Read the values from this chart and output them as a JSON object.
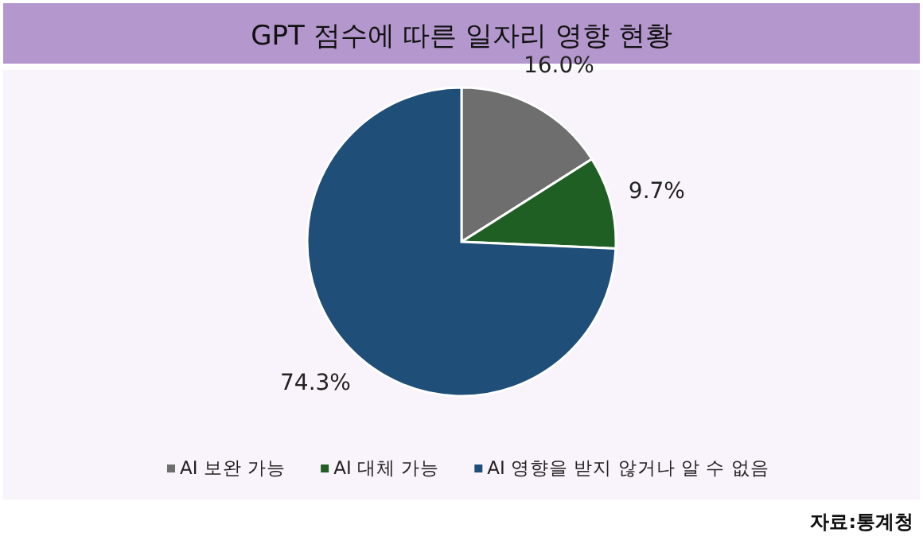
{
  "chart_data": {
    "type": "pie",
    "title": "GPT 점수에 따른 일자리 영향 현황",
    "categories": [
      "AI 보완 가능",
      "AI 대체 가능",
      "AI 영향을 받지 않거나 알 수 없음"
    ],
    "values": [
      16.0,
      9.7,
      74.3
    ],
    "colors": [
      "#6e6e6e",
      "#1f5f24",
      "#1f4e79"
    ],
    "value_labels": [
      "16.0%",
      "9.7%",
      "74.3%"
    ],
    "legend": "bottom",
    "annotations": [
      "자료:통계청"
    ]
  }
}
